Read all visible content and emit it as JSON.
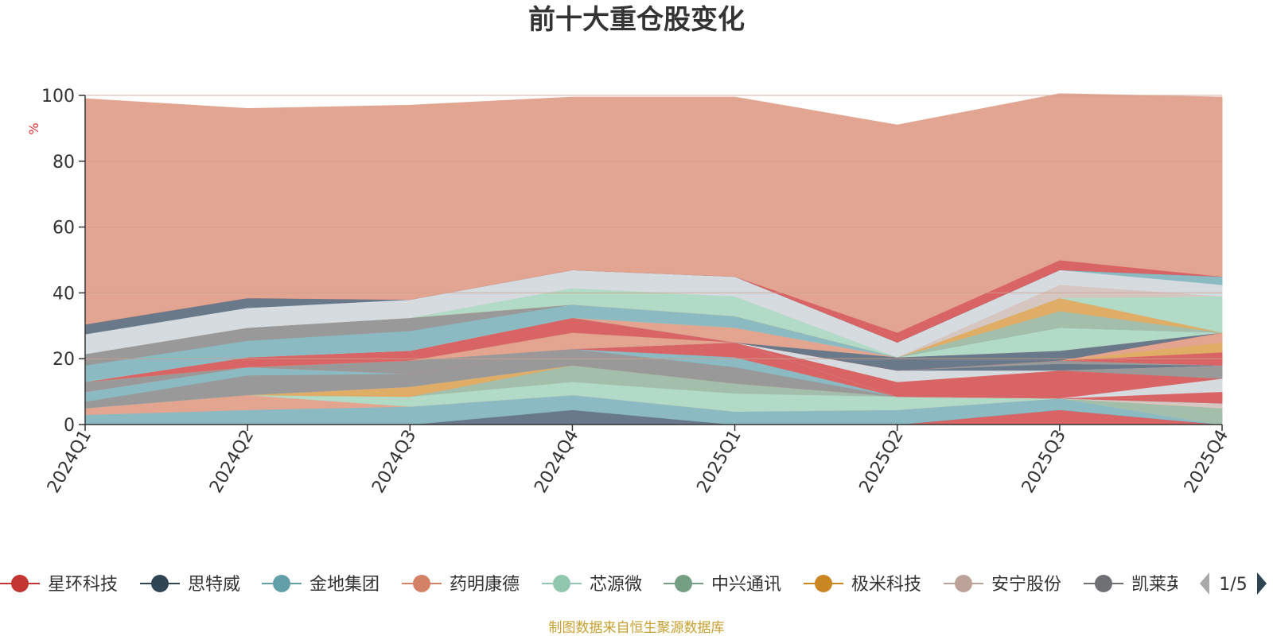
{
  "chart_data": {
    "type": "area",
    "stacked": true,
    "title": "前十大重仓股变化",
    "ylabel": "%",
    "ylim": [
      0,
      100
    ],
    "yticks": [
      0,
      20,
      40,
      60,
      80,
      100
    ],
    "grid": true,
    "categories": [
      "2024Q1",
      "2024Q2",
      "2024Q3",
      "2024Q4",
      "2025Q1",
      "2025Q2",
      "2025Q3",
      "2025Q4"
    ],
    "series": [
      {
        "name": "星环科技",
        "color": "#d96465",
        "values": [
          0,
          0,
          0,
          0,
          0,
          0,
          4.5,
          0
        ]
      },
      {
        "name": "思特威",
        "color": "#69798a",
        "values": [
          0,
          0,
          0,
          4.5,
          0,
          0,
          0,
          0
        ]
      },
      {
        "name": "金地集团",
        "color": "#8bbac3",
        "values": [
          3,
          4.5,
          5.5,
          4.5,
          4,
          4.5,
          3.5,
          0
        ]
      },
      {
        "name": "药明康德",
        "color": "#e3a590",
        "values": [
          2,
          4.5,
          0,
          0,
          0,
          0,
          0,
          0
        ]
      },
      {
        "name": "芯源微",
        "color": "#b1dac7",
        "values": [
          0,
          0,
          3,
          4,
          5.5,
          4,
          0,
          0
        ]
      },
      {
        "name": "中兴通讯",
        "color": "#a3bfab",
        "values": [
          0,
          0,
          0,
          5,
          3,
          0,
          0,
          5
        ]
      },
      {
        "name": "极米科技",
        "color": "#e0ad67",
        "values": [
          0,
          0,
          3,
          0,
          0,
          0,
          0,
          0
        ]
      },
      {
        "name": "安宁股份",
        "color": "#d6c6c2",
        "values": [
          0,
          0,
          0,
          0,
          0,
          0,
          0,
          1.5
        ]
      },
      {
        "name": "凯莱英",
        "color": "#999999",
        "values": [
          2,
          6,
          4,
          5,
          5,
          0,
          0,
          0
        ]
      },
      {
        "name": "",
        "color": "#8bbac3",
        "values": [
          3,
          2.5,
          0,
          0,
          3,
          0,
          0,
          0
        ]
      },
      {
        "name": "",
        "color": "#d96465",
        "values": [
          0,
          0,
          0,
          0,
          4.5,
          0,
          0,
          3.5
        ]
      },
      {
        "name": "",
        "color": "#d6dbe0",
        "values": [
          0,
          0,
          0,
          0,
          0,
          0,
          0,
          4
        ]
      },
      {
        "name": "",
        "color": "#d96465",
        "values": [
          0,
          0,
          0,
          0,
          0,
          4.5,
          8.5,
          0
        ]
      },
      {
        "name": "",
        "color": "#999999",
        "values": [
          3,
          0,
          4,
          0,
          0,
          0,
          0,
          4
        ]
      },
      {
        "name": "",
        "color": "#e3a590",
        "values": [
          0,
          0,
          0,
          5,
          0,
          0,
          0,
          0
        ]
      },
      {
        "name": "",
        "color": "#d6dbe0",
        "values": [
          0,
          0,
          0,
          0,
          0,
          3.5,
          0,
          0
        ]
      },
      {
        "name": "",
        "color": "#69798a",
        "values": [
          0,
          0,
          0,
          0,
          0,
          0,
          2,
          0
        ]
      },
      {
        "name": "",
        "color": "#999999",
        "values": [
          0,
          0,
          0,
          0,
          0,
          0,
          1,
          0
        ]
      },
      {
        "name": "",
        "color": "#d96465",
        "values": [
          0,
          0,
          0,
          0,
          0,
          0,
          0,
          4
        ]
      },
      {
        "name": "",
        "color": "#e0ad67",
        "values": [
          0,
          0,
          0,
          0,
          0,
          0,
          0,
          3
        ]
      },
      {
        "name": "",
        "color": "#e3a590",
        "values": [
          0,
          0,
          0,
          0,
          0,
          0,
          0,
          3
        ]
      },
      {
        "name": "",
        "color": "#d96465",
        "values": [
          0,
          3,
          3,
          4.5,
          0,
          0,
          0,
          0
        ]
      },
      {
        "name": "",
        "color": "#69798a",
        "values": [
          0,
          0,
          0,
          0,
          0,
          4,
          3,
          0
        ]
      },
      {
        "name": "",
        "color": "#e3a590",
        "values": [
          0,
          0,
          0,
          0,
          4.5,
          0,
          0,
          0
        ]
      },
      {
        "name": "",
        "color": "#b1dac7",
        "values": [
          0,
          0,
          0,
          0,
          0,
          0,
          7,
          0
        ]
      },
      {
        "name": "",
        "color": "#8bbac3",
        "values": [
          5,
          5,
          6,
          4,
          3.5,
          0,
          0,
          0
        ]
      },
      {
        "name": "",
        "color": "#999999",
        "values": [
          3.5,
          4,
          4,
          0,
          0,
          0,
          0,
          0
        ]
      },
      {
        "name": "",
        "color": "#a3bfab",
        "values": [
          0,
          0,
          0,
          0,
          0,
          0,
          5,
          0
        ]
      },
      {
        "name": "",
        "color": "#e0ad67",
        "values": [
          0,
          0,
          0,
          0,
          0,
          0,
          4,
          0
        ]
      },
      {
        "name": "",
        "color": "#b1dac7",
        "values": [
          0,
          0,
          0,
          5,
          6,
          0,
          0,
          11
        ]
      },
      {
        "name": "",
        "color": "#d6c6c2",
        "values": [
          0,
          0,
          0,
          0,
          0,
          0,
          4,
          0
        ]
      },
      {
        "name": "",
        "color": "#d6dbe0",
        "values": [
          6,
          6,
          5.5,
          5.5,
          6,
          4.5,
          4.5,
          3.5
        ]
      },
      {
        "name": "",
        "color": "#8bbac3",
        "values": [
          0,
          0,
          0,
          0,
          0,
          0,
          0,
          2.5
        ]
      },
      {
        "name": "",
        "color": "#69798a",
        "values": [
          3,
          3,
          0,
          0,
          0,
          0,
          0,
          0
        ]
      },
      {
        "name": "",
        "color": "#d96465",
        "values": [
          0,
          0,
          0,
          0,
          0,
          3,
          3,
          0
        ]
      },
      {
        "name": "",
        "color": "#e1a591",
        "values": [
          68.5,
          57.5,
          59,
          52.5,
          54.5,
          63,
          50.5,
          54.5
        ]
      }
    ]
  },
  "legend": {
    "items": [
      {
        "label": "星环科技",
        "color": "#c23531"
      },
      {
        "label": "思特威",
        "color": "#2f4554"
      },
      {
        "label": "金地集团",
        "color": "#61a0a8"
      },
      {
        "label": "药明康德",
        "color": "#d48265"
      },
      {
        "label": "芯源微",
        "color": "#91c7ae"
      },
      {
        "label": "中兴通讯",
        "color": "#749f83"
      },
      {
        "label": "极米科技",
        "color": "#ca8622"
      },
      {
        "label": "安宁股份",
        "color": "#bda29a"
      },
      {
        "label": "凯莱英",
        "color": "#6e7074"
      }
    ],
    "page": "1/5"
  },
  "footer": {
    "text": "制图数据来自恒生聚源数据库",
    "color": "#c8a030"
  },
  "colors": {
    "axis": "#333333",
    "grid": "#cfa08e",
    "ylabel": "#e03030",
    "pager_active": "#2f4554",
    "pager_inactive": "#aaaaaa"
  }
}
